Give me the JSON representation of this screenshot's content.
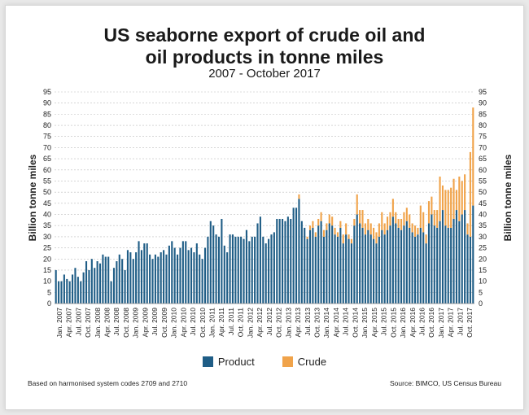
{
  "colors": {
    "product": "#1f5d86",
    "crude": "#f0a34a",
    "grid": "#bdbdbd"
  },
  "footnote": "Based on harmonised system codes 2709 and 2710",
  "source": "Source: BIMCO, US Census Bureau",
  "chart_data": {
    "type": "bar",
    "stacked": true,
    "title_line1": "US seaborne export of crude oil and",
    "title_line2": "oil products in tonne miles",
    "subtitle": "2007 - October 2017",
    "ylabel_left": "Billion tonne miles",
    "ylabel_right": "Billion tonne miles",
    "ylim": [
      0,
      95
    ],
    "ytick_step": 5,
    "grid": true,
    "legend_position": "bottom",
    "x_tick_labels": [
      "Jan. 2007",
      "Apr. 2007",
      "Jul. 2007",
      "Oct. 2007",
      "Jan. 2008",
      "Apr. 2008",
      "Jul. 2008",
      "Oct. 2008",
      "Jan. 2009",
      "Apr. 2009",
      "Jul. 2009",
      "Oct. 2009",
      "Jan. 2010",
      "Apr. 2010",
      "Jul. 2010",
      "Oct. 2010",
      "Jan. 2011",
      "Apr. 2011",
      "Jul. 2011",
      "Oct. 2011",
      "Jan. 2012",
      "Apr. 2012",
      "Jul. 2012",
      "Oct. 2012",
      "Jan. 2013",
      "Apr. 2013",
      "Jul. 2013",
      "Oct. 2013",
      "Jan. 2014",
      "Apr. 2014",
      "Jul. 2014",
      "Oct. 2014",
      "Jan. 2015",
      "Apr. 2015",
      "Jul. 2015",
      "Oct. 2015",
      "Jan. 2016",
      "Apr. 2016",
      "Jul. 2016",
      "Oct. 2016",
      "Jan. 2017",
      "Apr. 2017",
      "Jul. 2017",
      "Oct. 2017"
    ],
    "series": [
      {
        "name": "Product",
        "values": [
          15,
          10,
          10,
          13,
          11,
          10,
          13,
          16,
          12,
          10,
          14,
          19,
          15,
          20,
          16,
          19,
          18,
          22,
          21,
          21,
          10,
          16,
          19,
          22,
          20,
          15,
          24,
          23,
          20,
          23,
          28,
          24,
          27,
          27,
          22,
          20,
          22,
          21,
          23,
          24,
          22,
          26,
          28,
          25,
          22,
          25,
          28,
          28,
          24,
          25,
          23,
          27,
          22,
          20,
          25,
          30,
          37,
          35,
          31,
          30,
          38,
          26,
          23,
          31,
          31,
          30,
          30,
          30,
          29,
          33,
          28,
          30,
          30,
          36,
          39,
          30,
          27,
          29,
          31,
          32,
          38,
          38,
          38,
          37,
          39,
          38,
          43,
          43,
          47,
          37,
          34,
          29,
          33,
          34,
          30,
          35,
          37,
          30,
          33,
          36,
          35,
          31,
          30,
          34,
          27,
          31,
          29,
          27,
          35,
          40,
          36,
          34,
          31,
          33,
          31,
          29,
          27,
          30,
          33,
          31,
          33,
          35,
          39,
          36,
          34,
          33,
          35,
          37,
          34,
          32,
          30,
          31,
          34,
          32,
          27,
          36,
          40,
          35,
          34,
          37,
          42,
          35,
          34,
          34,
          38,
          42,
          37,
          40,
          42,
          31,
          30,
          44
        ],
        "_note_unused": ""
      },
      {
        "name": "Crude",
        "values": [
          0,
          0,
          0,
          0,
          0,
          0,
          0,
          0,
          0,
          0,
          0,
          0,
          0,
          0,
          0,
          0,
          0,
          0,
          0,
          0,
          0,
          0,
          0,
          0,
          0,
          0,
          0,
          0,
          0,
          0,
          0,
          0,
          0,
          0,
          0,
          0,
          0,
          0,
          0,
          0,
          0,
          0,
          0,
          0,
          0,
          0,
          0,
          0,
          0,
          0,
          0,
          0,
          0,
          0,
          0,
          0,
          0,
          0,
          0,
          0,
          0,
          0,
          0,
          0,
          0,
          0,
          0,
          0,
          0,
          0,
          0,
          0,
          0,
          0,
          0,
          0,
          0,
          0,
          0,
          0,
          0,
          0,
          0,
          0,
          0,
          0,
          0,
          0,
          2,
          0,
          0,
          1,
          2,
          3,
          2,
          3,
          4,
          3,
          3,
          4,
          4,
          3,
          2,
          3,
          4,
          5,
          2,
          2,
          3,
          9,
          6,
          8,
          5,
          5,
          5,
          5,
          5,
          6,
          8,
          5,
          6,
          6,
          8,
          5,
          4,
          5,
          6,
          6,
          6,
          4,
          5,
          3,
          10,
          9,
          4,
          10,
          8,
          7,
          8,
          20,
          11,
          16,
          17,
          18,
          18,
          9,
          20,
          15,
          16,
          5,
          38,
          44
        ]
      }
    ]
  }
}
